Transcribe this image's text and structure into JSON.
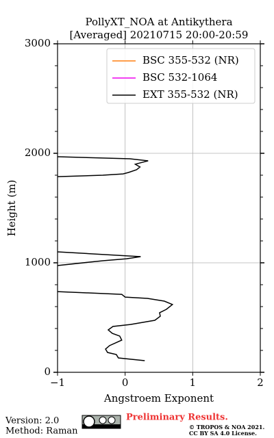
{
  "chart_data": {
    "type": "line",
    "title": [
      "PollyXT_NOA at Antikythera",
      "[Averaged] 20210715 20:00-20:59"
    ],
    "xlabel": "Angstroem Exponent",
    "ylabel": "Height (m)",
    "xlim": [
      -1,
      2
    ],
    "ylim": [
      0,
      3000
    ],
    "xticks": [
      {
        "value": -1,
        "label": "−1"
      },
      0,
      1,
      2
    ],
    "yticks": [
      0,
      1000,
      2000,
      3000
    ],
    "yminorticks": [
      200,
      400,
      600,
      800,
      1200,
      1400,
      1600,
      1800,
      2200,
      2400,
      2600,
      2800
    ],
    "grid": true,
    "legend": "upper right",
    "y": [
      106,
      131,
      162,
      181,
      212,
      244,
      294,
      331,
      356,
      387,
      419,
      437,
      475,
      512,
      544,
      575,
      619,
      650,
      675,
      687,
      712,
      737,
      null,
      975,
      1019,
      1037,
      1056,
      1100,
      null,
      1787,
      1800,
      1812,
      1825,
      1850,
      1875,
      1900,
      1912,
      1931,
      1950,
      1969
    ],
    "series": [
      {
        "name": "BSC 355-532 (NR)",
        "color": "#ff7f0e",
        "values": [
          null,
          null,
          null,
          null,
          null,
          null,
          null,
          null,
          null,
          null,
          null,
          null,
          null,
          null,
          null,
          null,
          null,
          null,
          null,
          null,
          null,
          null,
          null,
          null,
          null,
          null,
          null,
          null,
          null,
          null,
          null,
          null,
          null,
          null,
          null,
          null,
          null,
          null,
          null,
          null
        ]
      },
      {
        "name": "BSC 532-1064",
        "color": "#ee00ee",
        "values": [
          null,
          null,
          null,
          null,
          null,
          null,
          null,
          null,
          null,
          null,
          null,
          null,
          null,
          null,
          null,
          null,
          null,
          null,
          null,
          null,
          null,
          null,
          null,
          null,
          null,
          null,
          null,
          null,
          null,
          null,
          null,
          null,
          null,
          null,
          null,
          null,
          null,
          null,
          null,
          null
        ]
      },
      {
        "name": "EXT 355-532 (NR)",
        "color": "#000000",
        "values": [
          0.29,
          -0.1,
          -0.13,
          -0.26,
          -0.29,
          -0.23,
          -0.05,
          -0.08,
          -0.19,
          -0.25,
          -0.18,
          0.08,
          0.44,
          0.52,
          0.51,
          0.61,
          0.7,
          0.58,
          0.33,
          0.0,
          -0.05,
          -1.0,
          null,
          -1.0,
          -0.33,
          0.02,
          0.23,
          -1.0,
          null,
          -1.0,
          -0.33,
          -0.03,
          0.05,
          0.17,
          0.22,
          0.15,
          0.22,
          0.34,
          0.07,
          -1.0
        ]
      }
    ]
  },
  "footer": {
    "version": "Version: 2.0",
    "method": "Method: Raman",
    "status": "Preliminary Results.",
    "copyright": "© TROPOS & NOA 2021.",
    "license": "CC BY SA 4.0 License."
  }
}
